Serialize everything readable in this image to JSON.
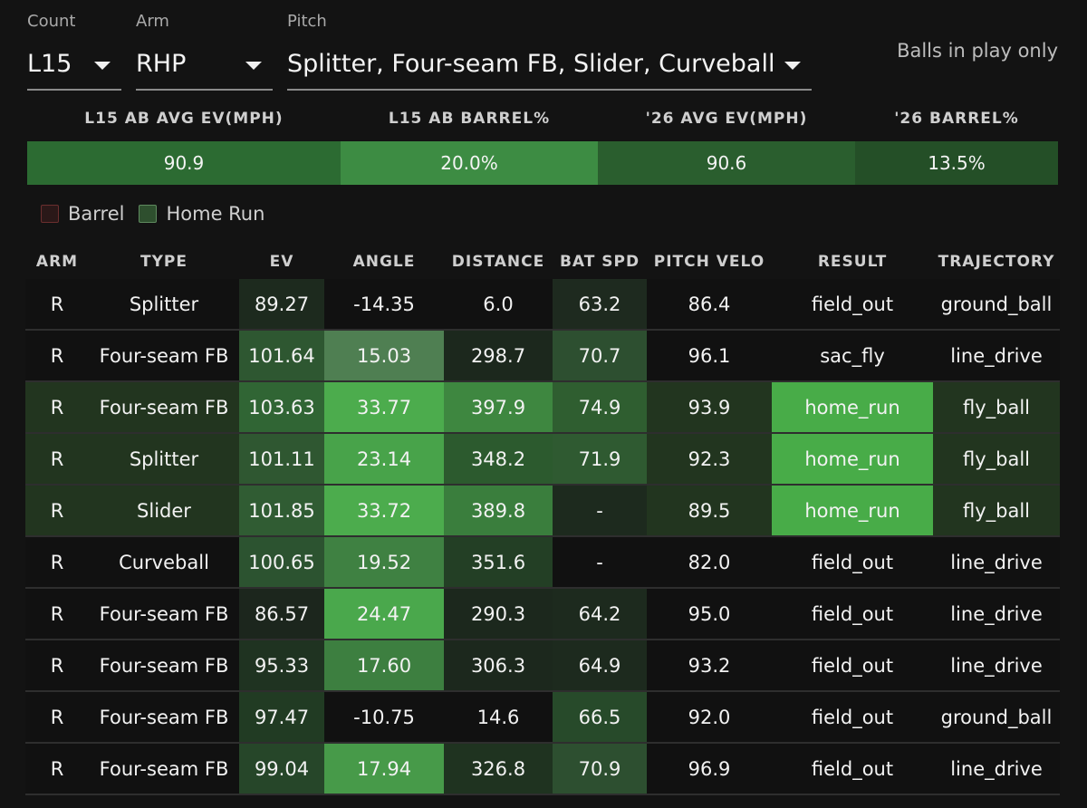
{
  "filters": {
    "count": {
      "label": "Count",
      "value": "L15"
    },
    "arm": {
      "label": "Arm",
      "value": "RHP"
    },
    "pitch": {
      "label": "Pitch",
      "value": "Splitter, Four-seam FB, Slider, Curveball"
    },
    "balls_in_play": "Balls in play only"
  },
  "summary": [
    {
      "header": "L15 AB AVG EV(MPH)",
      "value": "90.9",
      "color": "#2c6b32"
    },
    {
      "header": "L15 AB BARREL%",
      "value": "20.0%",
      "color": "#3d8c43"
    },
    {
      "header": "'26 AVG EV(MPH)",
      "value": "90.6",
      "color": "#2a5e2e"
    },
    {
      "header": "'26 BARREL%",
      "value": "13.5%",
      "color": "#244f27"
    }
  ],
  "legend": [
    {
      "label": "Barrel",
      "color": "#2a1818",
      "border": "#6b2e2e"
    },
    {
      "label": "Home Run",
      "color": "#2e4f2e",
      "border": "#5f8a5f"
    }
  ],
  "columns": [
    "ARM",
    "TYPE",
    "EV",
    "ANGLE",
    "DISTANCE",
    "BAT SPD",
    "PITCH VELO",
    "RESULT",
    "TRAJECTORY"
  ],
  "rows": [
    {
      "cells": [
        "R",
        "Splitter",
        "89.27",
        "-14.35",
        "6.0",
        "63.2",
        "86.4",
        "field_out",
        "ground_ball"
      ],
      "colors": [
        "#111111",
        "#111111",
        "#1d2a1e",
        "#111111",
        "#111111",
        "#1e2a1f",
        "#111111",
        "#111111",
        "#111111"
      ]
    },
    {
      "cells": [
        "R",
        "Four-seam FB",
        "101.64",
        "15.03",
        "298.7",
        "70.7",
        "96.1",
        "sac_fly",
        "line_drive"
      ],
      "colors": [
        "#111111",
        "#111111",
        "#2e5731",
        "#4f7f52",
        "#1c281d",
        "#2d4f30",
        "#111111",
        "#111111",
        "#111111"
      ]
    },
    {
      "cells": [
        "R",
        "Four-seam FB",
        "103.63",
        "33.77",
        "397.9",
        "74.9",
        "93.9",
        "home_run",
        "fly_ball"
      ],
      "colors": [
        "#22351f",
        "#22351f",
        "#306534",
        "#4cac4d",
        "#3e8740",
        "#2f5e30",
        "#22351f",
        "#48ac48",
        "#22351f"
      ]
    },
    {
      "cells": [
        "R",
        "Splitter",
        "101.11",
        "23.14",
        "348.2",
        "71.9",
        "92.3",
        "home_run",
        "fly_ball"
      ],
      "colors": [
        "#22351f",
        "#22351f",
        "#2f5731",
        "#48a34a",
        "#2c5a2e",
        "#2f5a31",
        "#22351f",
        "#48ac48",
        "#22351f"
      ]
    },
    {
      "cells": [
        "R",
        "Slider",
        "101.85",
        "33.72",
        "389.8",
        "-",
        "89.5",
        "home_run",
        "fly_ball"
      ],
      "colors": [
        "#22351f",
        "#22351f",
        "#305c33",
        "#4cac4d",
        "#3a7e3d",
        "#1d2a1e",
        "#22351f",
        "#48ac48",
        "#22351f"
      ]
    },
    {
      "cells": [
        "R",
        "Curveball",
        "100.65",
        "19.52",
        "351.6",
        "-",
        "82.0",
        "field_out",
        "line_drive"
      ],
      "colors": [
        "#111111",
        "#111111",
        "#2c5330",
        "#3f8142",
        "#233f25",
        "#111111",
        "#111111",
        "#111111",
        "#111111"
      ]
    },
    {
      "cells": [
        "R",
        "Four-seam FB",
        "86.57",
        "24.47",
        "290.3",
        "64.2",
        "95.0",
        "field_out",
        "line_drive"
      ],
      "colors": [
        "#111111",
        "#111111",
        "#1c261d",
        "#4aa84c",
        "#1c281d",
        "#1d2a1e",
        "#111111",
        "#111111",
        "#111111"
      ]
    },
    {
      "cells": [
        "R",
        "Four-seam FB",
        "95.33",
        "17.60",
        "306.3",
        "64.9",
        "93.2",
        "field_out",
        "line_drive"
      ],
      "colors": [
        "#111111",
        "#111111",
        "#1f3321",
        "#3d7f40",
        "#1c281d",
        "#1d2a1e",
        "#111111",
        "#111111",
        "#111111"
      ]
    },
    {
      "cells": [
        "R",
        "Four-seam FB",
        "97.47",
        "-10.75",
        "14.6",
        "66.5",
        "92.0",
        "field_out",
        "ground_ball"
      ],
      "colors": [
        "#111111",
        "#111111",
        "#213b23",
        "#111111",
        "#111111",
        "#274a2a",
        "#111111",
        "#111111",
        "#111111"
      ]
    },
    {
      "cells": [
        "R",
        "Four-seam FB",
        "99.04",
        "17.94",
        "326.8",
        "70.9",
        "96.9",
        "field_out",
        "line_drive"
      ],
      "colors": [
        "#111111",
        "#111111",
        "#264629",
        "#479a49",
        "#1f3320",
        "#2d4f30",
        "#111111",
        "#111111",
        "#111111"
      ]
    }
  ]
}
